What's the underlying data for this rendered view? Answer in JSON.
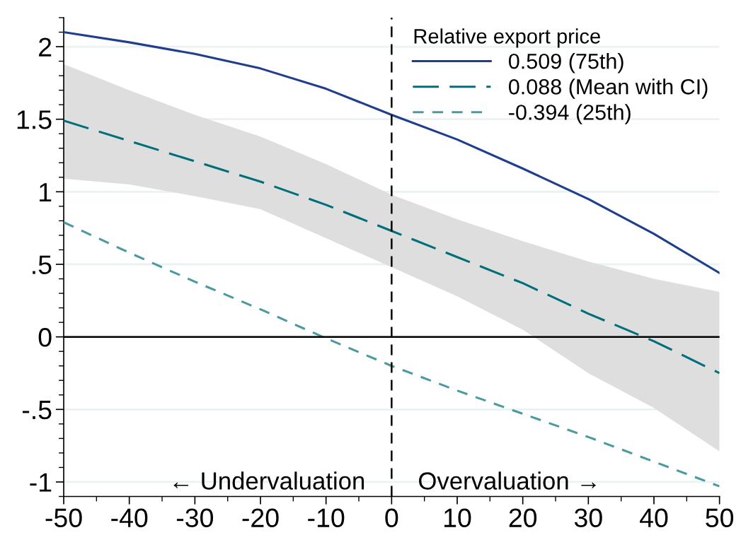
{
  "chart_data": {
    "type": "line",
    "x": [
      -50,
      -40,
      -30,
      -20,
      -10,
      0,
      10,
      20,
      30,
      40,
      50
    ],
    "series": [
      {
        "name": "0.509 (75th)",
        "color": "#1f3f8c",
        "line_style": "solid",
        "values": [
          2.1,
          2.03,
          1.95,
          1.85,
          1.71,
          1.53,
          1.36,
          1.16,
          0.95,
          0.71,
          0.44
        ]
      },
      {
        "name": "0.088 (Mean with CI)",
        "color": "#006f7a",
        "line_style": "dashed",
        "values": [
          1.49,
          1.35,
          1.21,
          1.07,
          0.91,
          0.73,
          0.55,
          0.37,
          0.16,
          -0.03,
          -0.25
        ],
        "lower": [
          1.09,
          1.05,
          0.97,
          0.88,
          0.68,
          0.48,
          0.28,
          0.05,
          -0.25,
          -0.49,
          -0.79
        ],
        "upper": [
          1.88,
          1.7,
          1.53,
          1.38,
          1.19,
          0.98,
          0.81,
          0.66,
          0.52,
          0.4,
          0.31
        ]
      },
      {
        "name": "-0.394 (25th)",
        "color": "#4a9aa0",
        "line_style": "dashed",
        "values": [
          0.79,
          0.58,
          0.38,
          0.19,
          -0.01,
          -0.2,
          -0.37,
          -0.53,
          -0.69,
          -0.86,
          -1.03
        ]
      }
    ],
    "xlim": [
      -50,
      50
    ],
    "xticks": [
      -50,
      {
        "value": -45,
        "label": null
      },
      -40,
      {
        "value": -35,
        "label": null
      },
      -30,
      {
        "value": -25,
        "label": null
      },
      -20,
      {
        "value": -15,
        "label": null
      },
      -10,
      {
        "value": -5,
        "label": null
      },
      0,
      {
        "value": 5,
        "label": null
      },
      10,
      {
        "value": 15,
        "label": null
      },
      20,
      {
        "value": 25,
        "label": null
      },
      30,
      {
        "value": 35,
        "label": null
      },
      40,
      {
        "value": 45,
        "label": null
      },
      50
    ],
    "ylim": [
      -1.1,
      2.2
    ],
    "yticks": [
      {
        "value": -1.1,
        "label": null
      },
      {
        "value": -1,
        "label": "-1"
      },
      {
        "value": -0.9,
        "label": null
      },
      {
        "value": -0.8,
        "label": null
      },
      {
        "value": -0.7,
        "label": null
      },
      {
        "value": -0.6,
        "label": null
      },
      {
        "value": -0.5,
        "label": "-.5"
      },
      {
        "value": -0.4,
        "label": null
      },
      {
        "value": -0.3,
        "label": null
      },
      {
        "value": -0.2,
        "label": null
      },
      {
        "value": -0.1,
        "label": null
      },
      0,
      {
        "value": 0.1,
        "label": null
      },
      {
        "value": 0.2,
        "label": null
      },
      {
        "value": 0.3,
        "label": null
      },
      {
        "value": 0.4,
        "label": null
      },
      {
        "value": 0.5,
        "label": ".5"
      },
      {
        "value": 0.6,
        "label": null
      },
      {
        "value": 0.7,
        "label": null
      },
      {
        "value": 0.8,
        "label": null
      },
      {
        "value": 0.9,
        "label": null
      },
      1,
      {
        "value": 1.1,
        "label": null
      },
      {
        "value": 1.2,
        "label": null
      },
      {
        "value": 1.3,
        "label": null
      },
      {
        "value": 1.4,
        "label": null
      },
      1.5,
      {
        "value": 1.6,
        "label": null
      },
      {
        "value": 1.7,
        "label": null
      },
      {
        "value": 1.8,
        "label": null
      },
      {
        "value": 1.9,
        "label": null
      },
      2,
      {
        "value": 2.1,
        "label": null
      },
      {
        "value": 2.2,
        "label": null
      }
    ],
    "ref_lines": [
      {
        "axis": "y",
        "value": 0,
        "color": "#000000",
        "line_style": "solid"
      },
      {
        "axis": "x",
        "value": 0,
        "color": "#000000",
        "line_style": "dashed"
      }
    ],
    "annotations": [
      "← Undervaluation",
      "Overvaluation →"
    ],
    "legend": "top right",
    "legend_title": "Relative export price",
    "grid": "y",
    "marker": "none"
  }
}
